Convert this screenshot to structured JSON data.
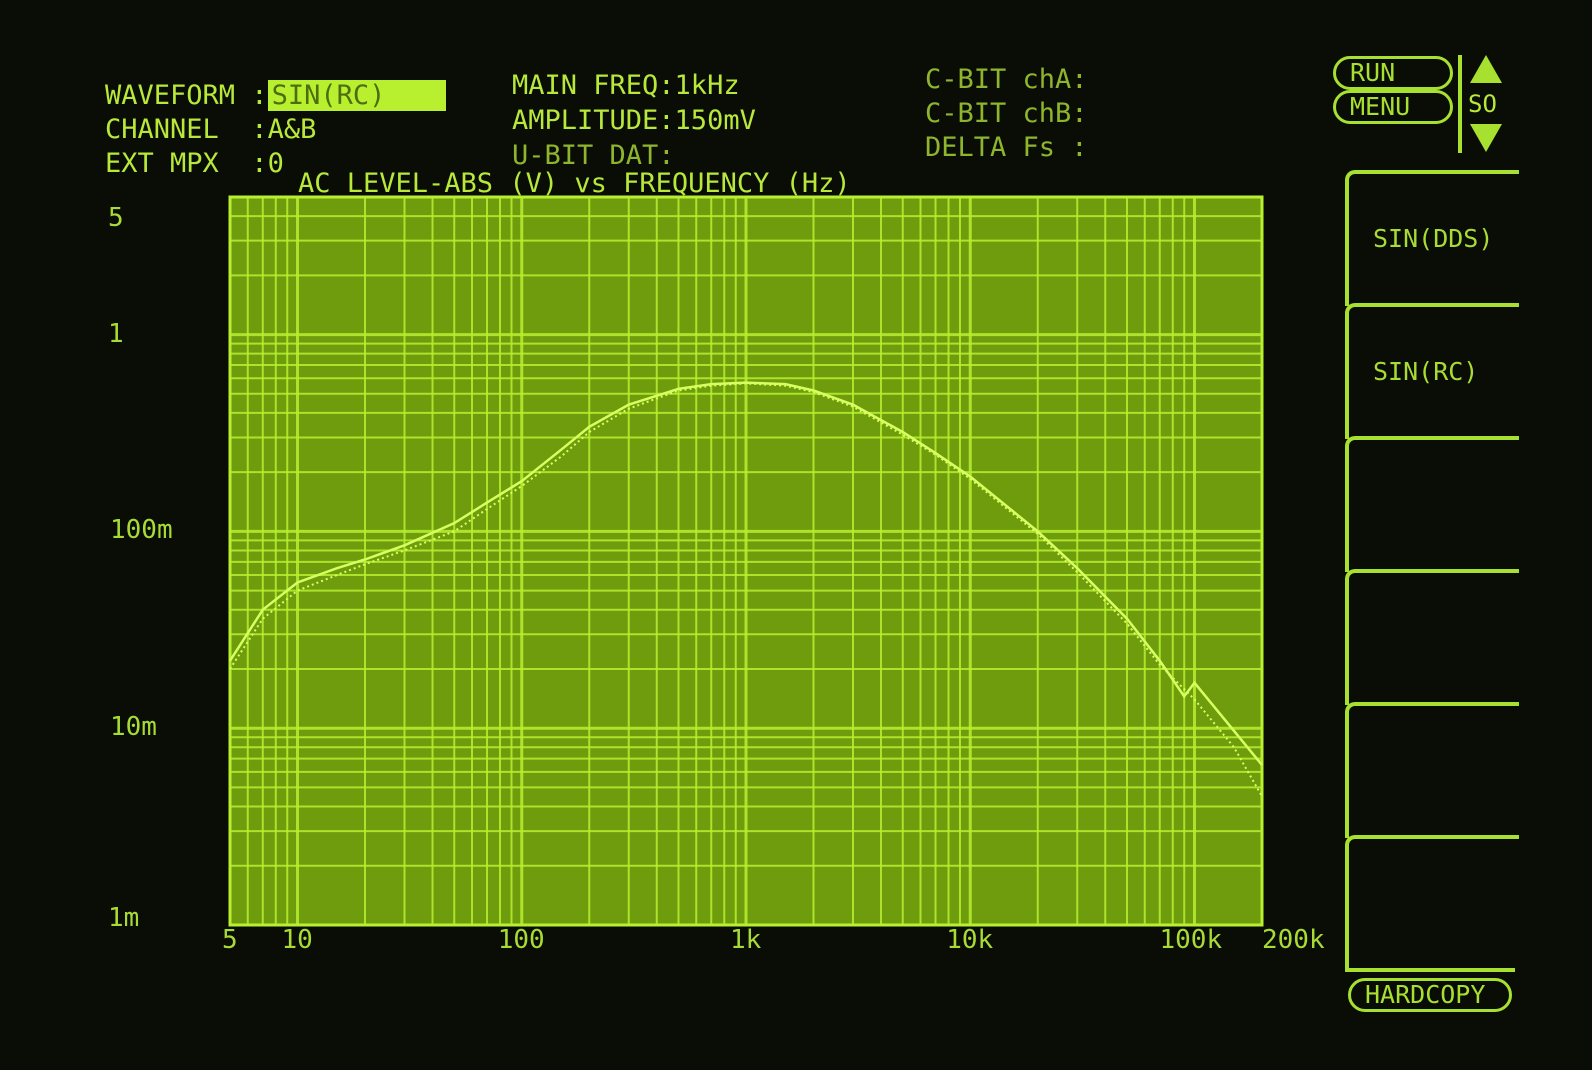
{
  "header": {
    "waveform_label": "WAVEFORM :",
    "waveform_value": "SIN(RC)",
    "channel_label": "CHANNEL  :",
    "channel_value": "A&B",
    "ext_mpx_label": "EXT MPX  :",
    "ext_mpx_value": "0",
    "main_freq": "MAIN FREQ:1kHz",
    "amplitude": "AMPLITUDE:150mV",
    "u_bit": "U-BIT DAT:",
    "c_bit_a": "C-BIT chA:",
    "c_bit_b": "C-BIT chB:",
    "delta_fs": "DELTA Fs :"
  },
  "controls": {
    "run": "RUN",
    "menu": "MENU",
    "scroll": "SO",
    "hardcopy": "HARDCOPY",
    "softkeys": [
      "SIN(DDS)",
      "SIN(RC)",
      "",
      "",
      "",
      ""
    ]
  },
  "colors": {
    "plot_bg": "#6e9c0c",
    "grid": "#b8f030",
    "trace": "#d8ff60",
    "text": "#b8e83a"
  },
  "chart_data": {
    "type": "line",
    "title": "AC LEVEL-ABS (V) vs FREQUENCY (Hz)",
    "x_scale": "log",
    "y_scale": "log",
    "xlim": [
      5,
      200000
    ],
    "ylim": [
      0.001,
      5
    ],
    "grid": true,
    "x_ticks": [
      {
        "v": 5,
        "l": "5"
      },
      {
        "v": 10,
        "l": "10"
      },
      {
        "v": 100,
        "l": "100"
      },
      {
        "v": 1000,
        "l": "1k"
      },
      {
        "v": 10000,
        "l": "10k"
      },
      {
        "v": 100000,
        "l": "100k"
      },
      {
        "v": 200000,
        "l": "200k"
      }
    ],
    "y_ticks": [
      {
        "v": 5,
        "l": "5"
      },
      {
        "v": 1,
        "l": "1"
      },
      {
        "v": 0.1,
        "l": "100m"
      },
      {
        "v": 0.01,
        "l": "10m"
      },
      {
        "v": 0.001,
        "l": "1m"
      }
    ],
    "series": [
      {
        "style": "solid",
        "x": [
          5,
          7,
          10,
          15,
          20,
          30,
          50,
          70,
          100,
          150,
          200,
          300,
          500,
          700,
          1000,
          1500,
          2000,
          3000,
          5000,
          7000,
          10000,
          20000,
          30000,
          50000,
          70000,
          90000,
          100000,
          200000
        ],
        "y": [
          0.022,
          0.04,
          0.055,
          0.065,
          0.072,
          0.085,
          0.11,
          0.14,
          0.18,
          0.26,
          0.34,
          0.44,
          0.53,
          0.56,
          0.57,
          0.56,
          0.52,
          0.44,
          0.32,
          0.25,
          0.19,
          0.1,
          0.065,
          0.036,
          0.022,
          0.0145,
          0.017,
          0.0065
        ]
      },
      {
        "style": "dotted",
        "x": [
          5,
          7,
          10,
          15,
          20,
          30,
          50,
          70,
          100,
          150,
          200,
          300,
          500,
          700,
          1000,
          1500,
          2000,
          3000,
          5000,
          7000,
          10000,
          20000,
          30000,
          50000,
          70000,
          100000,
          150000,
          200000
        ],
        "y": [
          0.02,
          0.036,
          0.05,
          0.06,
          0.068,
          0.08,
          0.1,
          0.13,
          0.17,
          0.24,
          0.32,
          0.42,
          0.52,
          0.55,
          0.565,
          0.55,
          0.51,
          0.43,
          0.31,
          0.245,
          0.185,
          0.097,
          0.062,
          0.034,
          0.021,
          0.014,
          0.008,
          0.0045
        ]
      }
    ]
  }
}
